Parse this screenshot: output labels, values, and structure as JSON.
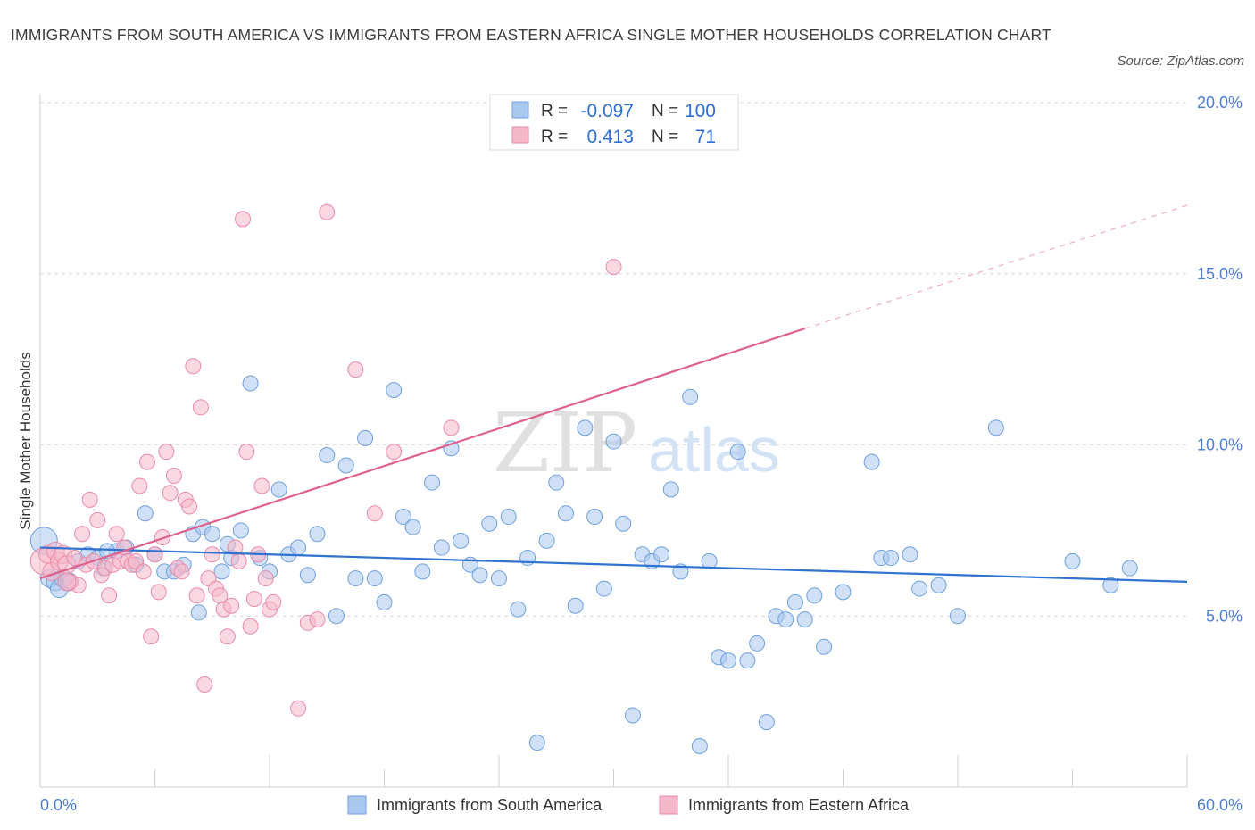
{
  "title": "IMMIGRANTS FROM SOUTH AMERICA VS IMMIGRANTS FROM EASTERN AFRICA SINGLE MOTHER HOUSEHOLDS CORRELATION CHART",
  "source": "Source: ZipAtlas.com",
  "watermark": {
    "zip": "ZIP",
    "atlas": "atlas"
  },
  "colors": {
    "blue_fill": "#a9c8f0",
    "blue_stroke": "#6f9fdc",
    "blue_line": "#2f72d0",
    "pink_fill": "#f5b8ca",
    "pink_stroke": "#e98aa8",
    "pink_line": "#e0608c",
    "grid": "#d8d8d8",
    "axis_text": "#4a7fd1"
  },
  "legend": {
    "rows": [
      {
        "r_label": "R =",
        "r_value": "-0.097",
        "n_label": "N =",
        "n_value": "100"
      },
      {
        "r_label": "R =",
        "r_value": "0.413",
        "n_label": "N =",
        "n_value": "71"
      }
    ]
  },
  "chart_data": {
    "type": "scatter",
    "xlabel": "",
    "ylabel": "Single Mother Households",
    "xlim": [
      0,
      60
    ],
    "ylim": [
      0,
      20
    ],
    "x_ticks": [
      {
        "value": 0,
        "label": "0.0%"
      },
      {
        "value": 60,
        "label": "60.0%"
      }
    ],
    "y_ticks": [
      {
        "value": 5,
        "label": "5.0%"
      },
      {
        "value": 10,
        "label": "10.0%"
      },
      {
        "value": 15,
        "label": "15.0%"
      },
      {
        "value": 20,
        "label": "20.0%"
      }
    ],
    "grid": "horizontal dashed",
    "legend_position": "bottom-center",
    "series": [
      {
        "name": "Immigrants from South America",
        "color": "#a9c8f0",
        "trend": {
          "x0": 0,
          "y0": 7.0,
          "x1": 60,
          "y1": 6.0
        },
        "points": [
          [
            0.2,
            7.2
          ],
          [
            0.5,
            6.1
          ],
          [
            0.8,
            6.0
          ],
          [
            1.0,
            5.8
          ],
          [
            1.2,
            6.1
          ],
          [
            1.5,
            6.0
          ],
          [
            2.0,
            6.6
          ],
          [
            2.5,
            6.8
          ],
          [
            3.0,
            6.7
          ],
          [
            3.3,
            6.4
          ],
          [
            4.0,
            6.9
          ],
          [
            4.5,
            7.0
          ],
          [
            5.0,
            6.5
          ],
          [
            5.5,
            8.0
          ],
          [
            6.0,
            6.8
          ],
          [
            6.5,
            6.3
          ],
          [
            7.0,
            6.3
          ],
          [
            7.5,
            6.5
          ],
          [
            8.0,
            7.4
          ],
          [
            8.3,
            5.1
          ],
          [
            8.5,
            7.6
          ],
          [
            9.0,
            7.4
          ],
          [
            9.5,
            6.3
          ],
          [
            10.0,
            6.7
          ],
          [
            10.5,
            7.5
          ],
          [
            11.0,
            11.8
          ],
          [
            11.5,
            6.7
          ],
          [
            12.0,
            6.3
          ],
          [
            12.5,
            8.7
          ],
          [
            13.0,
            6.8
          ],
          [
            13.5,
            7.0
          ],
          [
            14.0,
            6.2
          ],
          [
            14.5,
            7.4
          ],
          [
            15.0,
            9.7
          ],
          [
            15.5,
            5.0
          ],
          [
            16.0,
            9.4
          ],
          [
            16.5,
            6.1
          ],
          [
            17.0,
            10.2
          ],
          [
            17.5,
            6.1
          ],
          [
            18.0,
            5.4
          ],
          [
            18.5,
            11.6
          ],
          [
            19.0,
            7.9
          ],
          [
            19.5,
            7.6
          ],
          [
            20.0,
            6.3
          ],
          [
            20.5,
            8.9
          ],
          [
            21.0,
            7.0
          ],
          [
            21.5,
            9.9
          ],
          [
            22.0,
            7.2
          ],
          [
            22.5,
            6.5
          ],
          [
            23.0,
            6.2
          ],
          [
            23.5,
            7.7
          ],
          [
            24.0,
            6.1
          ],
          [
            24.5,
            7.9
          ],
          [
            25.0,
            5.2
          ],
          [
            25.5,
            6.7
          ],
          [
            26.0,
            1.3
          ],
          [
            26.5,
            7.2
          ],
          [
            27.0,
            8.9
          ],
          [
            27.5,
            8.0
          ],
          [
            28.0,
            5.3
          ],
          [
            28.5,
            10.5
          ],
          [
            29.0,
            7.9
          ],
          [
            29.5,
            5.8
          ],
          [
            30.0,
            10.1
          ],
          [
            30.5,
            7.7
          ],
          [
            31.0,
            2.1
          ],
          [
            31.5,
            6.8
          ],
          [
            32.0,
            6.6
          ],
          [
            32.5,
            6.8
          ],
          [
            33.0,
            8.7
          ],
          [
            33.5,
            6.3
          ],
          [
            34.0,
            11.4
          ],
          [
            34.5,
            1.2
          ],
          [
            35.0,
            6.6
          ],
          [
            35.5,
            3.8
          ],
          [
            36.0,
            3.7
          ],
          [
            36.5,
            9.8
          ],
          [
            37.0,
            3.7
          ],
          [
            37.5,
            4.2
          ],
          [
            38.0,
            1.9
          ],
          [
            38.5,
            5.0
          ],
          [
            39.0,
            4.9
          ],
          [
            39.5,
            5.4
          ],
          [
            40.0,
            4.9
          ],
          [
            40.5,
            5.6
          ],
          [
            41.0,
            4.1
          ],
          [
            42.0,
            5.7
          ],
          [
            43.5,
            9.5
          ],
          [
            44.0,
            6.7
          ],
          [
            44.5,
            6.7
          ],
          [
            45.5,
            6.8
          ],
          [
            46.0,
            5.8
          ],
          [
            47.0,
            5.9
          ],
          [
            48.0,
            5.0
          ],
          [
            50.0,
            10.5
          ],
          [
            54.0,
            6.6
          ],
          [
            56.0,
            5.9
          ],
          [
            57.0,
            6.4
          ],
          [
            3.5,
            6.9
          ],
          [
            9.8,
            7.1
          ]
        ]
      },
      {
        "name": "Immigrants from Eastern Africa",
        "color": "#f5b8ca",
        "trend": {
          "x0": 0,
          "y0": 6.1,
          "x1": 40,
          "y1": 13.4,
          "dash_x1": 60,
          "dash_y1": 17.0
        },
        "points": [
          [
            0.2,
            6.6
          ],
          [
            0.4,
            6.8
          ],
          [
            0.6,
            6.3
          ],
          [
            0.8,
            6.9
          ],
          [
            1.0,
            6.6
          ],
          [
            1.2,
            6.8
          ],
          [
            1.4,
            6.5
          ],
          [
            1.6,
            6.0
          ],
          [
            1.8,
            6.7
          ],
          [
            2.0,
            5.9
          ],
          [
            2.2,
            7.4
          ],
          [
            2.4,
            6.5
          ],
          [
            2.6,
            8.4
          ],
          [
            2.8,
            6.6
          ],
          [
            3.0,
            7.8
          ],
          [
            3.2,
            6.2
          ],
          [
            3.4,
            6.4
          ],
          [
            3.6,
            5.6
          ],
          [
            3.8,
            6.5
          ],
          [
            4.0,
            7.4
          ],
          [
            4.2,
            6.6
          ],
          [
            4.4,
            7.0
          ],
          [
            4.6,
            6.6
          ],
          [
            4.8,
            6.5
          ],
          [
            5.0,
            6.6
          ],
          [
            5.2,
            8.8
          ],
          [
            5.4,
            6.3
          ],
          [
            5.6,
            9.5
          ],
          [
            5.8,
            4.4
          ],
          [
            6.0,
            6.8
          ],
          [
            6.2,
            5.7
          ],
          [
            6.4,
            7.3
          ],
          [
            6.6,
            9.8
          ],
          [
            6.8,
            8.6
          ],
          [
            7.0,
            9.1
          ],
          [
            7.2,
            6.4
          ],
          [
            7.4,
            6.3
          ],
          [
            7.6,
            8.4
          ],
          [
            7.8,
            8.2
          ],
          [
            8.0,
            12.3
          ],
          [
            8.2,
            5.6
          ],
          [
            8.4,
            11.1
          ],
          [
            8.6,
            3.0
          ],
          [
            8.8,
            6.1
          ],
          [
            9.0,
            6.8
          ],
          [
            9.2,
            5.8
          ],
          [
            9.4,
            5.6
          ],
          [
            9.6,
            5.2
          ],
          [
            9.8,
            4.4
          ],
          [
            10.0,
            5.3
          ],
          [
            10.2,
            7.0
          ],
          [
            10.4,
            6.6
          ],
          [
            10.6,
            16.6
          ],
          [
            10.8,
            9.8
          ],
          [
            11.0,
            4.7
          ],
          [
            11.2,
            5.5
          ],
          [
            11.4,
            6.8
          ],
          [
            11.6,
            8.8
          ],
          [
            11.8,
            6.1
          ],
          [
            12.0,
            5.2
          ],
          [
            12.2,
            5.4
          ],
          [
            13.5,
            2.3
          ],
          [
            14.0,
            4.8
          ],
          [
            14.5,
            4.9
          ],
          [
            15.0,
            16.8
          ],
          [
            16.5,
            12.2
          ],
          [
            17.5,
            8.0
          ],
          [
            18.5,
            9.8
          ],
          [
            21.5,
            10.5
          ],
          [
            30.0,
            15.2
          ],
          [
            1.4,
            6.0
          ]
        ]
      }
    ]
  }
}
